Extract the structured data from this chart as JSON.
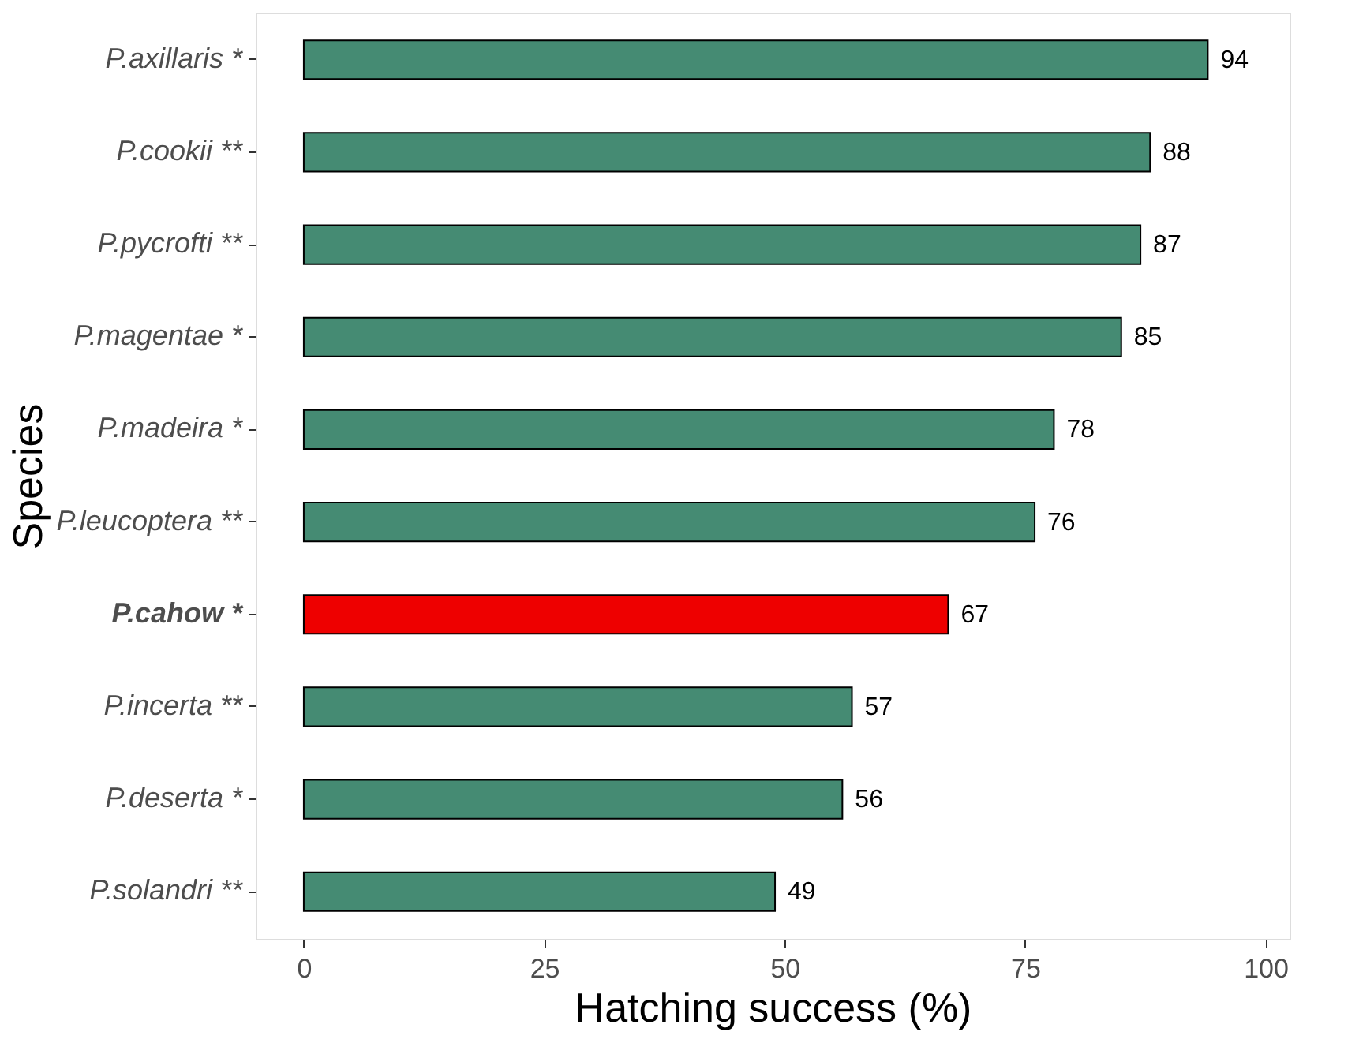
{
  "chart_data": {
    "type": "bar",
    "orientation": "horizontal",
    "xlabel": "Hatching success (%)",
    "ylabel": "Species",
    "categories": [
      "P.axillaris *",
      "P.cookii **",
      "P.pycrofti **",
      "P.magentae *",
      "P.madeira *",
      "P.leucoptera **",
      "P.cahow *",
      "P.incerta **",
      "P.deserta *",
      "P.solandri **"
    ],
    "values": [
      94,
      88,
      87,
      85,
      78,
      76,
      67,
      57,
      56,
      49
    ],
    "colors": [
      "#458b73",
      "#458b73",
      "#458b73",
      "#458b73",
      "#458b73",
      "#458b73",
      "#ee0000",
      "#458b73",
      "#458b73",
      "#458b73"
    ],
    "xlim": [
      -5,
      102.5
    ],
    "xticks": [
      0,
      25,
      50,
      75,
      100
    ],
    "grid": false,
    "data_labels": true
  }
}
